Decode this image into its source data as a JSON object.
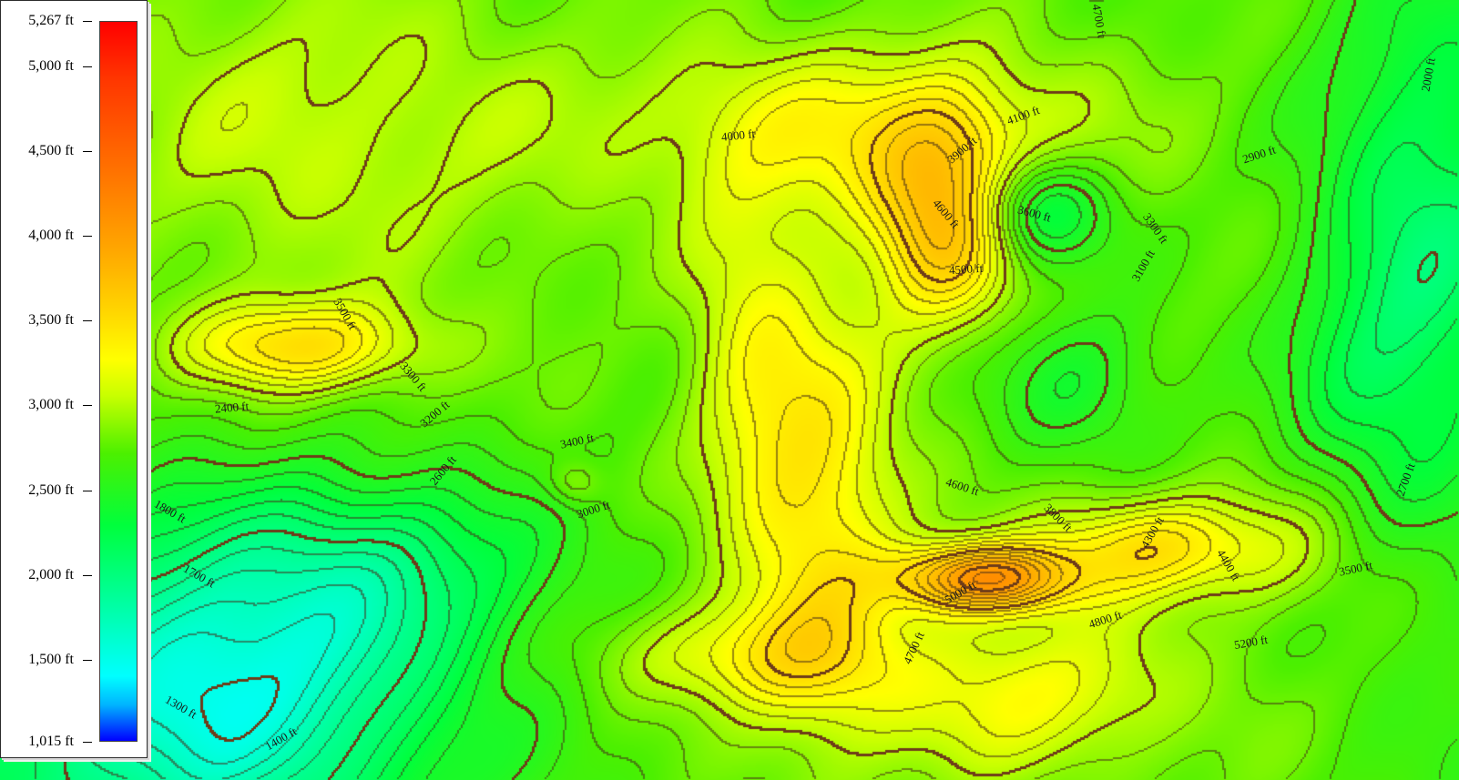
{
  "legend": {
    "ticks": [
      {
        "label": "5,267 ft",
        "value": 5267
      },
      {
        "label": "5,000 ft",
        "value": 5000
      },
      {
        "label": "4,500 ft",
        "value": 4500
      },
      {
        "label": "4,000 ft",
        "value": 4000
      },
      {
        "label": "3,500 ft",
        "value": 3500
      },
      {
        "label": "3,000 ft",
        "value": 3000
      },
      {
        "label": "2,500 ft",
        "value": 2500
      },
      {
        "label": "2,000 ft",
        "value": 2000
      },
      {
        "label": "1,500 ft",
        "value": 1500
      },
      {
        "label": "1,015 ft",
        "value": 1015
      }
    ],
    "min_value": 1015,
    "max_value": 5267
  },
  "contour_labels": {
    "l4000": "4000 ft",
    "l4100": "4100 ft",
    "l3900": "3900 ft",
    "l4700top": "4700 ft",
    "l2000": "2000 ft",
    "l2900": "2900 ft",
    "l4600a": "4600 ft",
    "l3600": "3600 ft",
    "l3300": "3300 ft",
    "l3100": "3100 ft",
    "l4500": "4500 ft",
    "l3500a": "3500 ft",
    "l3300b": "3300 ft",
    "l3200": "3200 ft",
    "l2400": "2400 ft",
    "l2600": "2600 ft",
    "l3400": "3400 ft",
    "l3000": "3000 ft",
    "l4600b": "4600 ft",
    "l3800": "3800 ft",
    "l4300": "4300 ft",
    "l4400": "4400 ft",
    "l3500b": "3500 ft",
    "l2700": "2700 ft",
    "l5000": "5000 ft",
    "l4800": "4800 ft",
    "l4700": "4700 ft",
    "l5200": "5200 ft",
    "l1800": "1800 ft",
    "l1700": "1700 ft",
    "l1300": "1300 ft",
    "l1400": "1400 ft"
  }
}
